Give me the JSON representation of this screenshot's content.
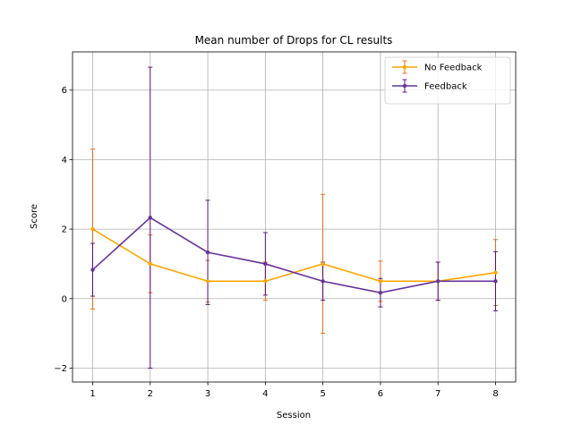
{
  "chart_data": {
    "type": "line",
    "title": "Mean number of Drops for CL results",
    "xlabel": "Session",
    "ylabel": "Score",
    "x": [
      1,
      2,
      3,
      4,
      5,
      6,
      7,
      8
    ],
    "xlim": [
      0.65,
      8.35
    ],
    "ylim": [
      -2.4,
      7.1
    ],
    "xticks": [
      "1",
      "2",
      "3",
      "4",
      "5",
      "6",
      "7",
      "8"
    ],
    "yticks": [
      {
        "value": -2,
        "label": "−2"
      },
      {
        "value": 0,
        "label": "0"
      },
      {
        "value": 2,
        "label": "2"
      },
      {
        "value": 4,
        "label": "4"
      },
      {
        "value": 6,
        "label": "6"
      }
    ],
    "grid": true,
    "legend_position": "top-right",
    "series": [
      {
        "name": "No Feedback",
        "color": "#ffa500",
        "errcolor": "#e8630e",
        "values": [
          2.0,
          1.0,
          0.5,
          0.5,
          1.0,
          0.5,
          0.5,
          0.75
        ],
        "errors": [
          2.3,
          0.83,
          0.6,
          0.55,
          2.0,
          0.58,
          0.55,
          0.95
        ]
      },
      {
        "name": "Feedback",
        "color": "#663399",
        "errcolor": "#4b0082",
        "values": [
          0.83,
          2.33,
          1.33,
          1.0,
          0.5,
          0.17,
          0.5,
          0.5
        ],
        "errors": [
          0.76,
          4.33,
          1.5,
          0.9,
          0.55,
          0.41,
          0.55,
          0.85
        ]
      }
    ]
  }
}
